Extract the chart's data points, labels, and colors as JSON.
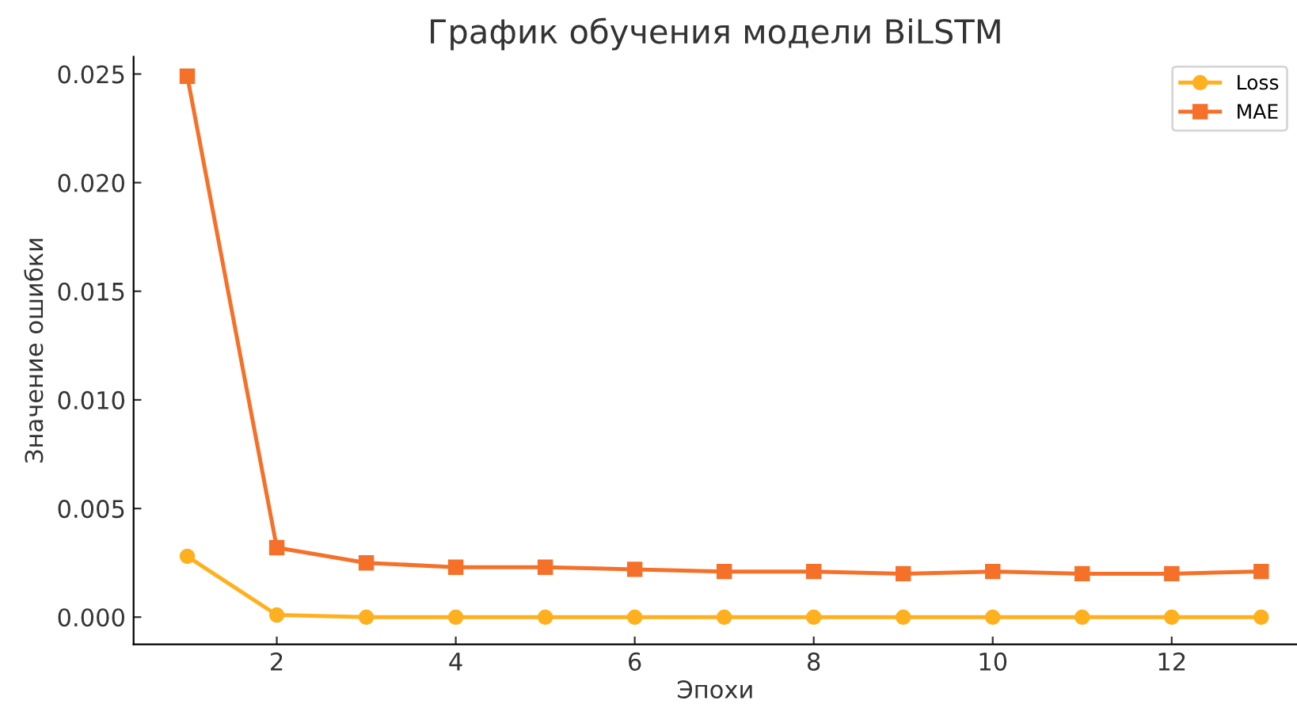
{
  "chart_data": {
    "type": "line",
    "title": "График обучения модели BiLSTM",
    "xlabel": "Эпохи",
    "ylabel": "Значение ошибки",
    "x": [
      1,
      2,
      3,
      4,
      5,
      6,
      7,
      8,
      9,
      10,
      11,
      12,
      13
    ],
    "series": [
      {
        "name": "Loss",
        "color": "#ffb01f",
        "marker": "circle",
        "values": [
          0.0028,
          0.0001,
          0.0,
          0.0,
          0.0,
          0.0,
          0.0,
          0.0,
          0.0,
          0.0,
          0.0,
          0.0,
          0.0
        ]
      },
      {
        "name": "MAE",
        "color": "#f5712a",
        "marker": "square",
        "values": [
          0.0249,
          0.0032,
          0.0025,
          0.0023,
          0.0023,
          0.0022,
          0.0021,
          0.0021,
          0.002,
          0.0021,
          0.002,
          0.002,
          0.0021
        ]
      }
    ],
    "xlim": [
      0.4,
      13.4
    ],
    "ylim": [
      -0.00125,
      0.0258
    ],
    "xticks": [
      2,
      4,
      6,
      8,
      10,
      12
    ],
    "yticks": [
      {
        "value": 0,
        "label": "0.000"
      },
      {
        "value": 0.005,
        "label": "0.005"
      },
      {
        "value": 0.01,
        "label": "0.010"
      },
      {
        "value": 0.015,
        "label": "0.015"
      },
      {
        "value": 0.02,
        "label": "0.020"
      },
      {
        "value": 0.025,
        "label": "0.025"
      }
    ],
    "grid": false,
    "legend": "top right",
    "line_style": "solid"
  }
}
